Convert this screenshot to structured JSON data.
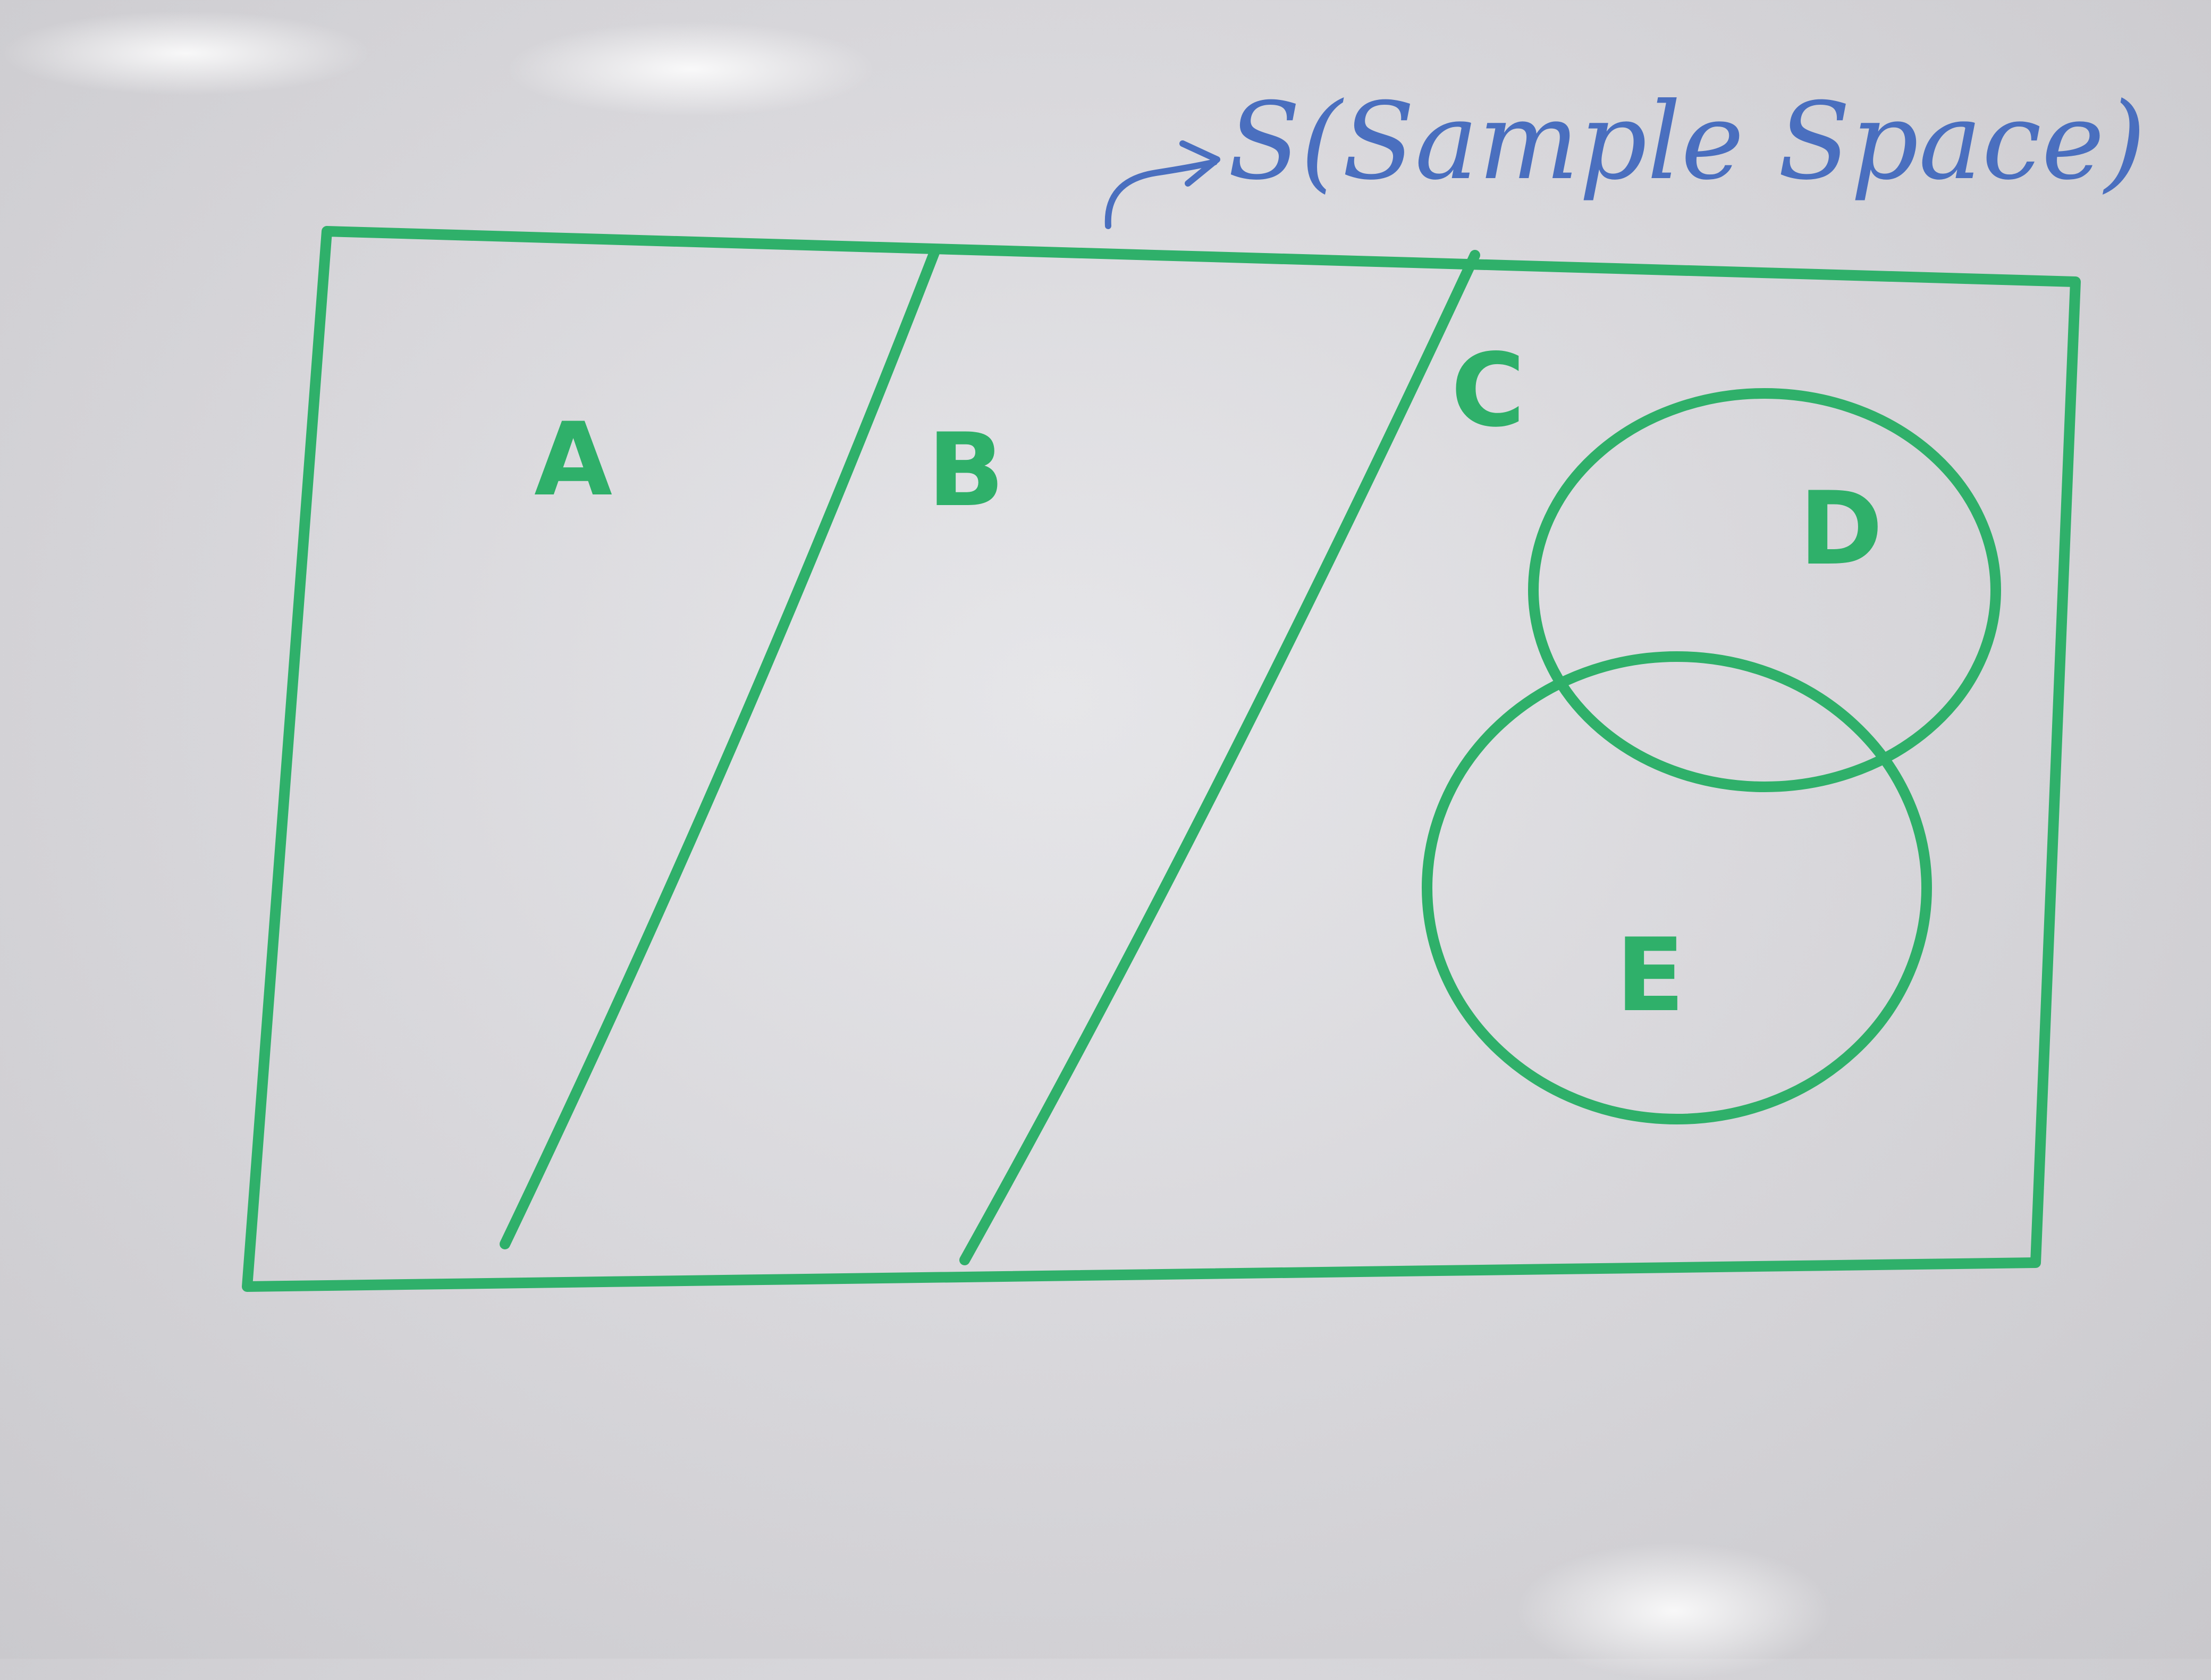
{
  "diagram": {
    "sample_space_label": "S(Sample Space)",
    "regions": [
      "A",
      "B",
      "C"
    ],
    "events": [
      "D",
      "E"
    ],
    "colors": {
      "marker_green": "#2fb06a",
      "marker_blue": "#4a6fbf",
      "whiteboard": "#d9d8dc"
    }
  }
}
